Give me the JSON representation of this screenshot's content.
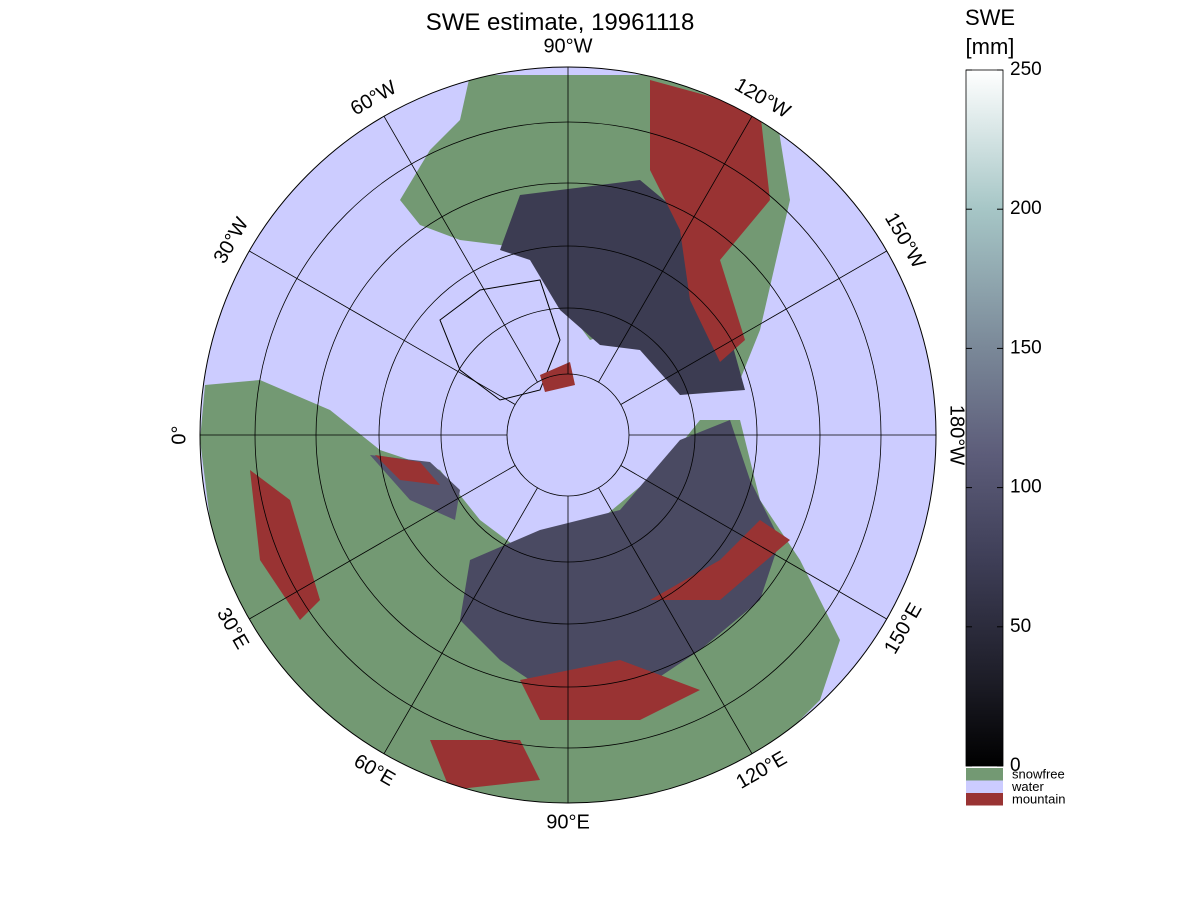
{
  "title": "SWE estimate, 19961118",
  "meridian_labels": [
    "0°",
    "30°E",
    "60°E",
    "90°E",
    "120°E",
    "150°E",
    "180°W",
    "150°W",
    "120°W",
    "90°W",
    "60°W",
    "30°W"
  ],
  "colorbar": {
    "label": [
      "SWE",
      "[mm]"
    ],
    "lim": [
      0,
      250
    ],
    "ticks": [
      0,
      50,
      100,
      150,
      200,
      250
    ],
    "categories": [
      {
        "name": "snowfree",
        "color": "#739973"
      },
      {
        "name": "water",
        "color": "#ccccff"
      },
      {
        "name": "mountain",
        "color": "#993333"
      }
    ]
  }
}
